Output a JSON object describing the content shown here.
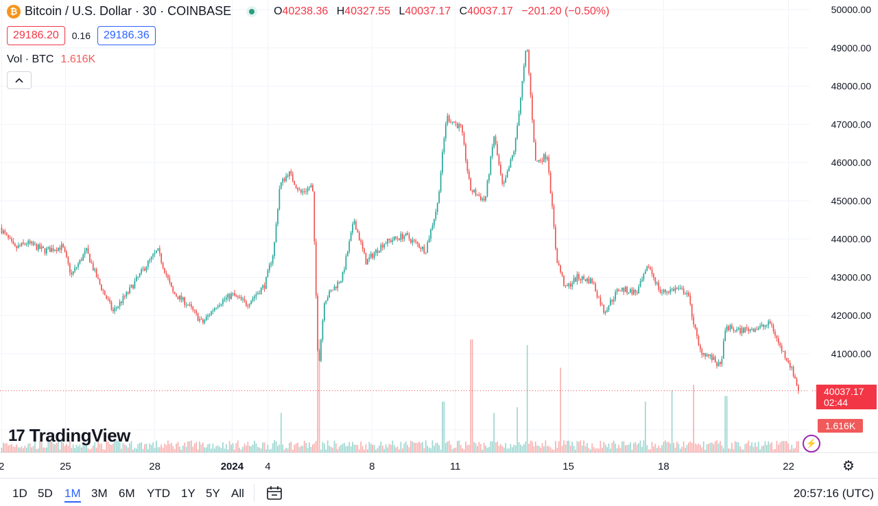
{
  "header": {
    "symbol_title": "Bitcoin / U.S. Dollar · 30 · COINBASE",
    "btc_glyph": "₿",
    "ohlc": {
      "o_label": "O",
      "o": "40238.36",
      "h_label": "H",
      "h": "40327.55",
      "l_label": "L",
      "l": "40037.17",
      "c_label": "C",
      "c": "40037.17",
      "change": "−201.20 (−0.50%)"
    },
    "sell_price": "29186.20",
    "spread": "0.16",
    "buy_price": "29186.36",
    "volume_label": "Vol · BTC",
    "volume_value": "1.616K",
    "collapse_icon": "chevron-up-icon"
  },
  "logo": {
    "mark": "17",
    "text": "TradingView"
  },
  "price_tag": {
    "price": "40037.17",
    "countdown": "02:44"
  },
  "vol_tag": "1.616K",
  "bottom": {
    "ranges": [
      "1D",
      "5D",
      "1M",
      "3M",
      "6M",
      "YTD",
      "1Y",
      "5Y",
      "All"
    ],
    "active_range": "1M",
    "clock": "20:57:16 (UTC)"
  },
  "colors": {
    "up": "#26a69a",
    "down": "#ef5350",
    "last_price": "#f23645",
    "accent": "#2962ff"
  },
  "chart_data": {
    "type": "candlestick",
    "y_ticks": [
      "50000.00",
      "49000.00",
      "48000.00",
      "47000.00",
      "46000.00",
      "45000.00",
      "44000.00",
      "43000.00",
      "42000.00",
      "41000.00"
    ],
    "y_range": [
      39500,
      50200
    ],
    "x_ticks": [
      "2",
      "25",
      "28",
      "2024",
      "4",
      "8",
      "11",
      "15",
      "18",
      "22"
    ],
    "x_tick_days": [
      -0.25,
      1.9,
      4.9,
      7.5,
      8.7,
      12.2,
      15.0,
      18.8,
      22.0,
      26.2
    ],
    "x_range": [
      -0.3,
      26.9
    ],
    "last_price": 40037.17,
    "price_path": [
      [
        -0.3,
        44300
      ],
      [
        0.2,
        43750
      ],
      [
        0.6,
        43900
      ],
      [
        1.2,
        43700
      ],
      [
        1.8,
        43800
      ],
      [
        2.1,
        43050
      ],
      [
        2.6,
        43700
      ],
      [
        3.0,
        42900
      ],
      [
        3.5,
        42100
      ],
      [
        4.0,
        42600
      ],
      [
        4.6,
        43300
      ],
      [
        5.0,
        43700
      ],
      [
        5.5,
        42600
      ],
      [
        6.0,
        42300
      ],
      [
        6.5,
        41800
      ],
      [
        7.0,
        42300
      ],
      [
        7.5,
        42550
      ],
      [
        8.0,
        42300
      ],
      [
        8.6,
        42800
      ],
      [
        8.9,
        43700
      ],
      [
        9.1,
        45400
      ],
      [
        9.4,
        45750
      ],
      [
        9.8,
        45200
      ],
      [
        10.2,
        45400
      ],
      [
        10.4,
        40600
      ],
      [
        10.6,
        42400
      ],
      [
        11.2,
        43000
      ],
      [
        11.6,
        44500
      ],
      [
        12.0,
        43400
      ],
      [
        12.6,
        43900
      ],
      [
        13.3,
        44100
      ],
      [
        14.0,
        43700
      ],
      [
        14.4,
        44900
      ],
      [
        14.7,
        47200
      ],
      [
        15.2,
        46900
      ],
      [
        15.5,
        45300
      ],
      [
        16.0,
        45000
      ],
      [
        16.3,
        46700
      ],
      [
        16.6,
        45300
      ],
      [
        17.0,
        46400
      ],
      [
        17.4,
        49100
      ],
      [
        17.7,
        46000
      ],
      [
        18.1,
        46200
      ],
      [
        18.4,
        43500
      ],
      [
        18.7,
        42700
      ],
      [
        19.1,
        43000
      ],
      [
        19.6,
        42900
      ],
      [
        20.0,
        42100
      ],
      [
        20.5,
        42700
      ],
      [
        21.1,
        42600
      ],
      [
        21.5,
        43300
      ],
      [
        21.9,
        42600
      ],
      [
        22.4,
        42700
      ],
      [
        22.8,
        42600
      ],
      [
        23.2,
        41100
      ],
      [
        23.6,
        40900
      ],
      [
        23.9,
        40650
      ],
      [
        24.1,
        41700
      ],
      [
        24.5,
        41600
      ],
      [
        24.9,
        41650
      ],
      [
        25.3,
        41700
      ],
      [
        25.6,
        41800
      ],
      [
        25.9,
        41200
      ],
      [
        26.2,
        40800
      ],
      [
        26.4,
        40400
      ],
      [
        26.53,
        40037
      ]
    ],
    "volume_spikes": [
      [
        10.4,
        1.0
      ],
      [
        15.55,
        1.0
      ],
      [
        17.4,
        0.95
      ],
      [
        18.55,
        0.75
      ],
      [
        23.0,
        0.6
      ],
      [
        22.3,
        0.55
      ],
      [
        17.1,
        0.4
      ],
      [
        16.3,
        0.35
      ],
      [
        14.6,
        0.45
      ],
      [
        24.1,
        0.5
      ],
      [
        21.4,
        0.45
      ],
      [
        9.15,
        0.35
      ]
    ]
  }
}
